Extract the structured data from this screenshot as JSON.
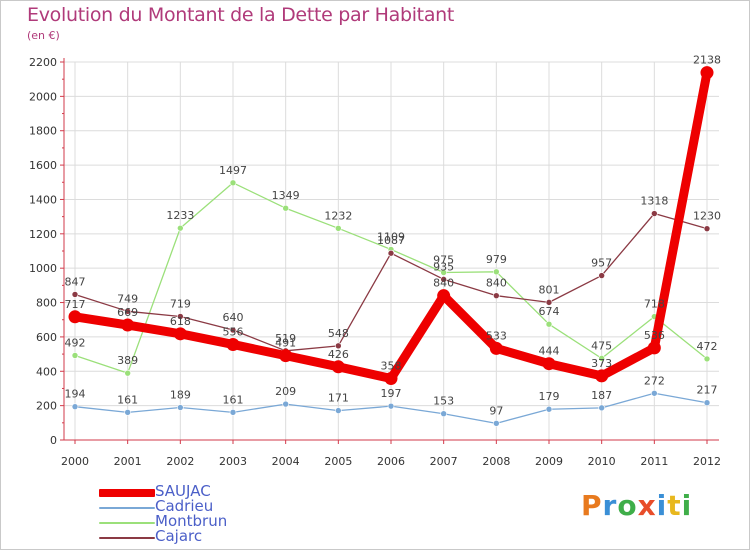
{
  "header": {
    "title": "Evolution du Montant de la Dette par Habitant",
    "unit": "(en €)"
  },
  "brand": {
    "text": "Proxiti",
    "colors": [
      "#e87a1e",
      "#3a8fd6",
      "#3fae49",
      "#e84d2a",
      "#3a8fd6",
      "#e8b81e",
      "#3fae49"
    ]
  },
  "colors": {
    "title": "#b03a7a",
    "axis": "#d23a4a",
    "grid": "#dcdcdc",
    "legend_text": "#4b5fc8"
  },
  "chart_data": {
    "type": "line",
    "title": "Evolution du Montant de la Dette par Habitant",
    "ylabel": "(en €)",
    "x": [
      "2000",
      "2001",
      "2002",
      "2003",
      "2004",
      "2005",
      "2006",
      "2007",
      "2008",
      "2009",
      "2010",
      "2011",
      "2012"
    ],
    "ylim": [
      0,
      2200
    ],
    "yticks": [
      0,
      200,
      400,
      600,
      800,
      1000,
      1200,
      1400,
      1600,
      1800,
      2000,
      2200
    ],
    "grid": true,
    "legend_position": "bottom-left",
    "series": [
      {
        "name": "Montbrun",
        "color": "#9be07a",
        "stroke": "thin",
        "values": [
          492,
          389,
          1233,
          1497,
          1349,
          1232,
          1109,
          975,
          979,
          674,
          475,
          718,
          472
        ]
      },
      {
        "name": "Cajarc",
        "color": "#8b3a44",
        "stroke": "thin",
        "values": [
          847,
          749,
          719,
          640,
          519,
          548,
          1087,
          935,
          840,
          801,
          957,
          1318,
          1230
        ]
      },
      {
        "name": "Cadrieu",
        "color": "#7aa8d6",
        "stroke": "thin",
        "values": [
          194,
          161,
          189,
          161,
          209,
          171,
          197,
          153,
          97,
          179,
          187,
          272,
          217
        ]
      },
      {
        "name": "SAUJAC",
        "color": "#ee0000",
        "stroke": "thick",
        "values": [
          717,
          669,
          618,
          556,
          491,
          426,
          358,
          840,
          533,
          444,
          373,
          536,
          2138
        ]
      }
    ],
    "legend_order": [
      "SAUJAC",
      "Cadrieu",
      "Montbrun",
      "Cajarc"
    ]
  }
}
